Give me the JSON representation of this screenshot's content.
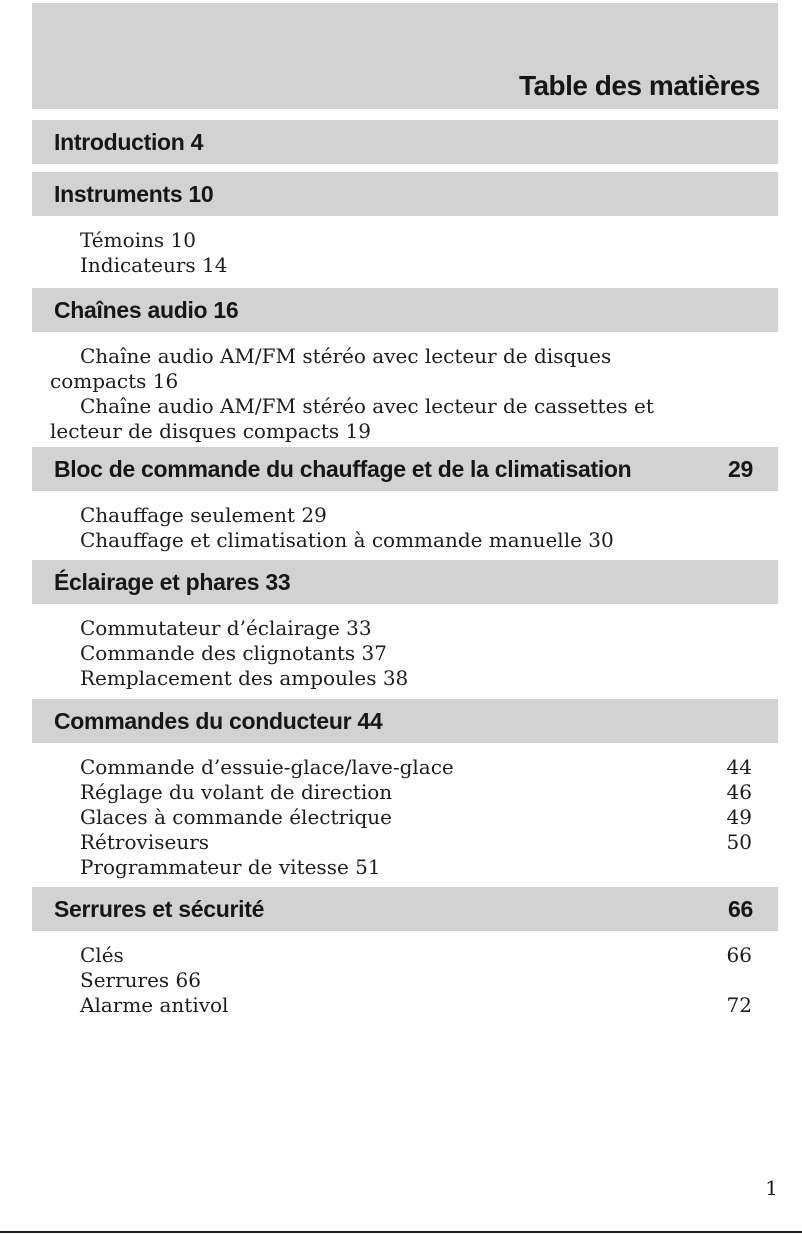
{
  "page": {
    "title": "Table des matières",
    "page_number": "1"
  },
  "colors": {
    "bar_gray": "#d2d2d2",
    "text": "#1c1c1c",
    "rule": "#1a1a1a"
  },
  "sections": [
    {
      "label": "Introduction 4",
      "page": "",
      "items": []
    },
    {
      "label": "Instruments 10",
      "page": "",
      "items": [
        {
          "lines": [
            "Témoins 10"
          ],
          "page": ""
        },
        {
          "lines": [
            "Indicateurs 14"
          ],
          "page": ""
        }
      ]
    },
    {
      "label": "Chaînes audio 16",
      "page": "",
      "items": [
        {
          "lines": [
            "Chaîne audio AM/FM stéréo avec lecteur de disques",
            "compacts 16"
          ],
          "page": ""
        },
        {
          "lines": [
            "Chaîne audio AM/FM stéréo avec lecteur de cassettes et",
            "lecteur de disques compacts 19"
          ],
          "page": ""
        }
      ]
    },
    {
      "label": "Bloc de commande du chauffage et de la climatisation",
      "page": "29",
      "items": [
        {
          "lines": [
            "Chauffage seulement 29"
          ],
          "page": ""
        },
        {
          "lines": [
            "Chauffage et climatisation à commande manuelle 30"
          ],
          "page": ""
        }
      ]
    },
    {
      "label": "Éclairage et phares 33",
      "page": "",
      "items": [
        {
          "lines": [
            "Commutateur d’éclairage 33"
          ],
          "page": ""
        },
        {
          "lines": [
            "Commande des clignotants 37"
          ],
          "page": ""
        },
        {
          "lines": [
            "Remplacement des ampoules 38"
          ],
          "page": ""
        }
      ]
    },
    {
      "label": "Commandes du conducteur 44",
      "page": "",
      "items": [
        {
          "lines": [
            "Commande d’essuie-glace/lave-glace"
          ],
          "page": "44"
        },
        {
          "lines": [
            "Réglage du volant de direction"
          ],
          "page": "46"
        },
        {
          "lines": [
            "Glaces à commande électrique"
          ],
          "page": "49"
        },
        {
          "lines": [
            "Rétroviseurs"
          ],
          "page": "50"
        },
        {
          "lines": [
            "Programmateur de vitesse 51"
          ],
          "page": ""
        }
      ]
    },
    {
      "label": "Serrures et sécurité",
      "page": "66",
      "items": [
        {
          "lines": [
            "Clés"
          ],
          "page": "66"
        },
        {
          "lines": [
            "Serrures 66"
          ],
          "page": ""
        },
        {
          "lines": [
            "Alarme antivol"
          ],
          "page": "72"
        }
      ]
    }
  ]
}
